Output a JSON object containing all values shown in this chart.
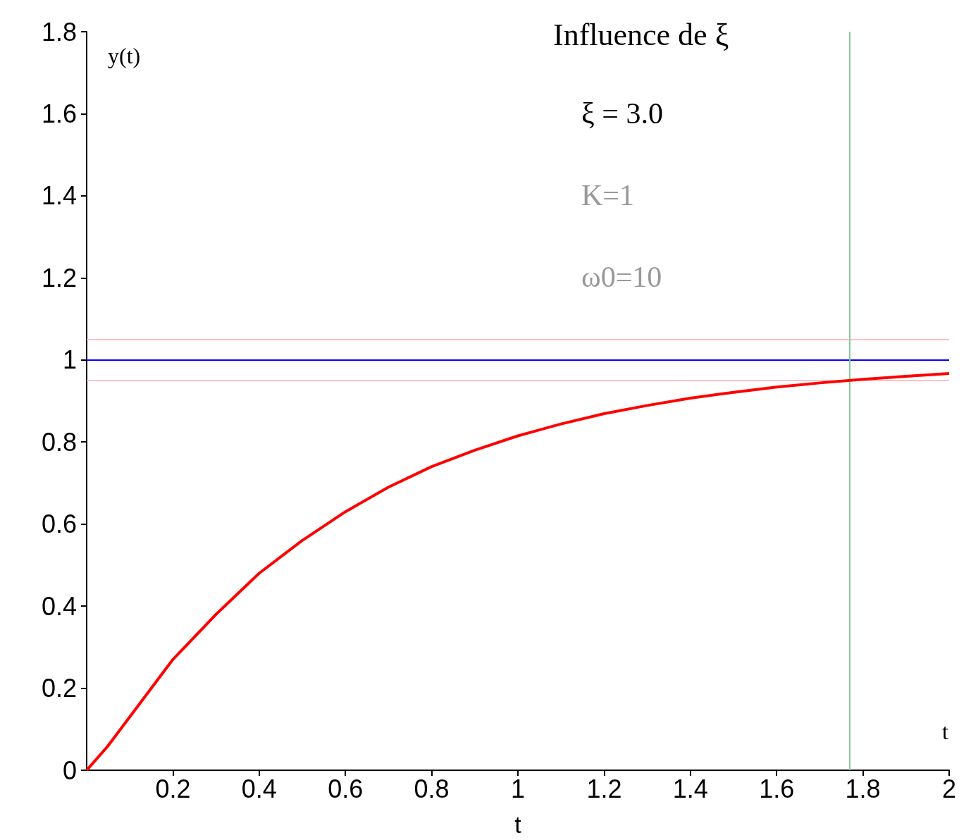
{
  "chart_data": {
    "type": "line",
    "title": "Influence de ξ",
    "xlabel": "t",
    "ylabel": "y(t)",
    "annotations": [
      "ξ = 3.0",
      "K=1",
      "ω0=10"
    ],
    "x": [
      0,
      0.05,
      0.1,
      0.15,
      0.2,
      0.3,
      0.4,
      0.5,
      0.6,
      0.7,
      0.8,
      0.9,
      1.0,
      1.1,
      1.2,
      1.3,
      1.4,
      1.5,
      1.6,
      1.7,
      1.8,
      1.9,
      2.0
    ],
    "series": [
      {
        "color": "#ff0000",
        "values": [
          0,
          0.06,
          0.13,
          0.2,
          0.27,
          0.38,
          0.48,
          0.56,
          0.63,
          0.69,
          0.74,
          0.78,
          0.815,
          0.844,
          0.869,
          0.889,
          0.907,
          0.921,
          0.934,
          0.944,
          0.953,
          0.96,
          0.967
        ]
      }
    ],
    "xlim": [
      0,
      2
    ],
    "xticks": [
      0.2,
      0.4,
      0.6,
      0.8,
      1,
      1.2,
      1.4,
      1.6,
      1.8,
      2
    ],
    "ylim": [
      0,
      1.8
    ],
    "yticks": [
      0,
      0.2,
      0.4,
      0.6,
      0.8,
      1,
      1.2,
      1.4,
      1.6,
      1.8
    ],
    "ref_lines": [
      {
        "axis": "y",
        "value": 1.05,
        "color": "#ffc0cb"
      },
      {
        "axis": "y",
        "value": 0.95,
        "color": "#ffc0cb"
      },
      {
        "axis": "y",
        "value": 1,
        "color": "#0000ff"
      },
      {
        "axis": "x",
        "value": 1.77,
        "color": "#88cc99"
      }
    ],
    "grid": false,
    "marker": "none",
    "line_style": "solid"
  }
}
